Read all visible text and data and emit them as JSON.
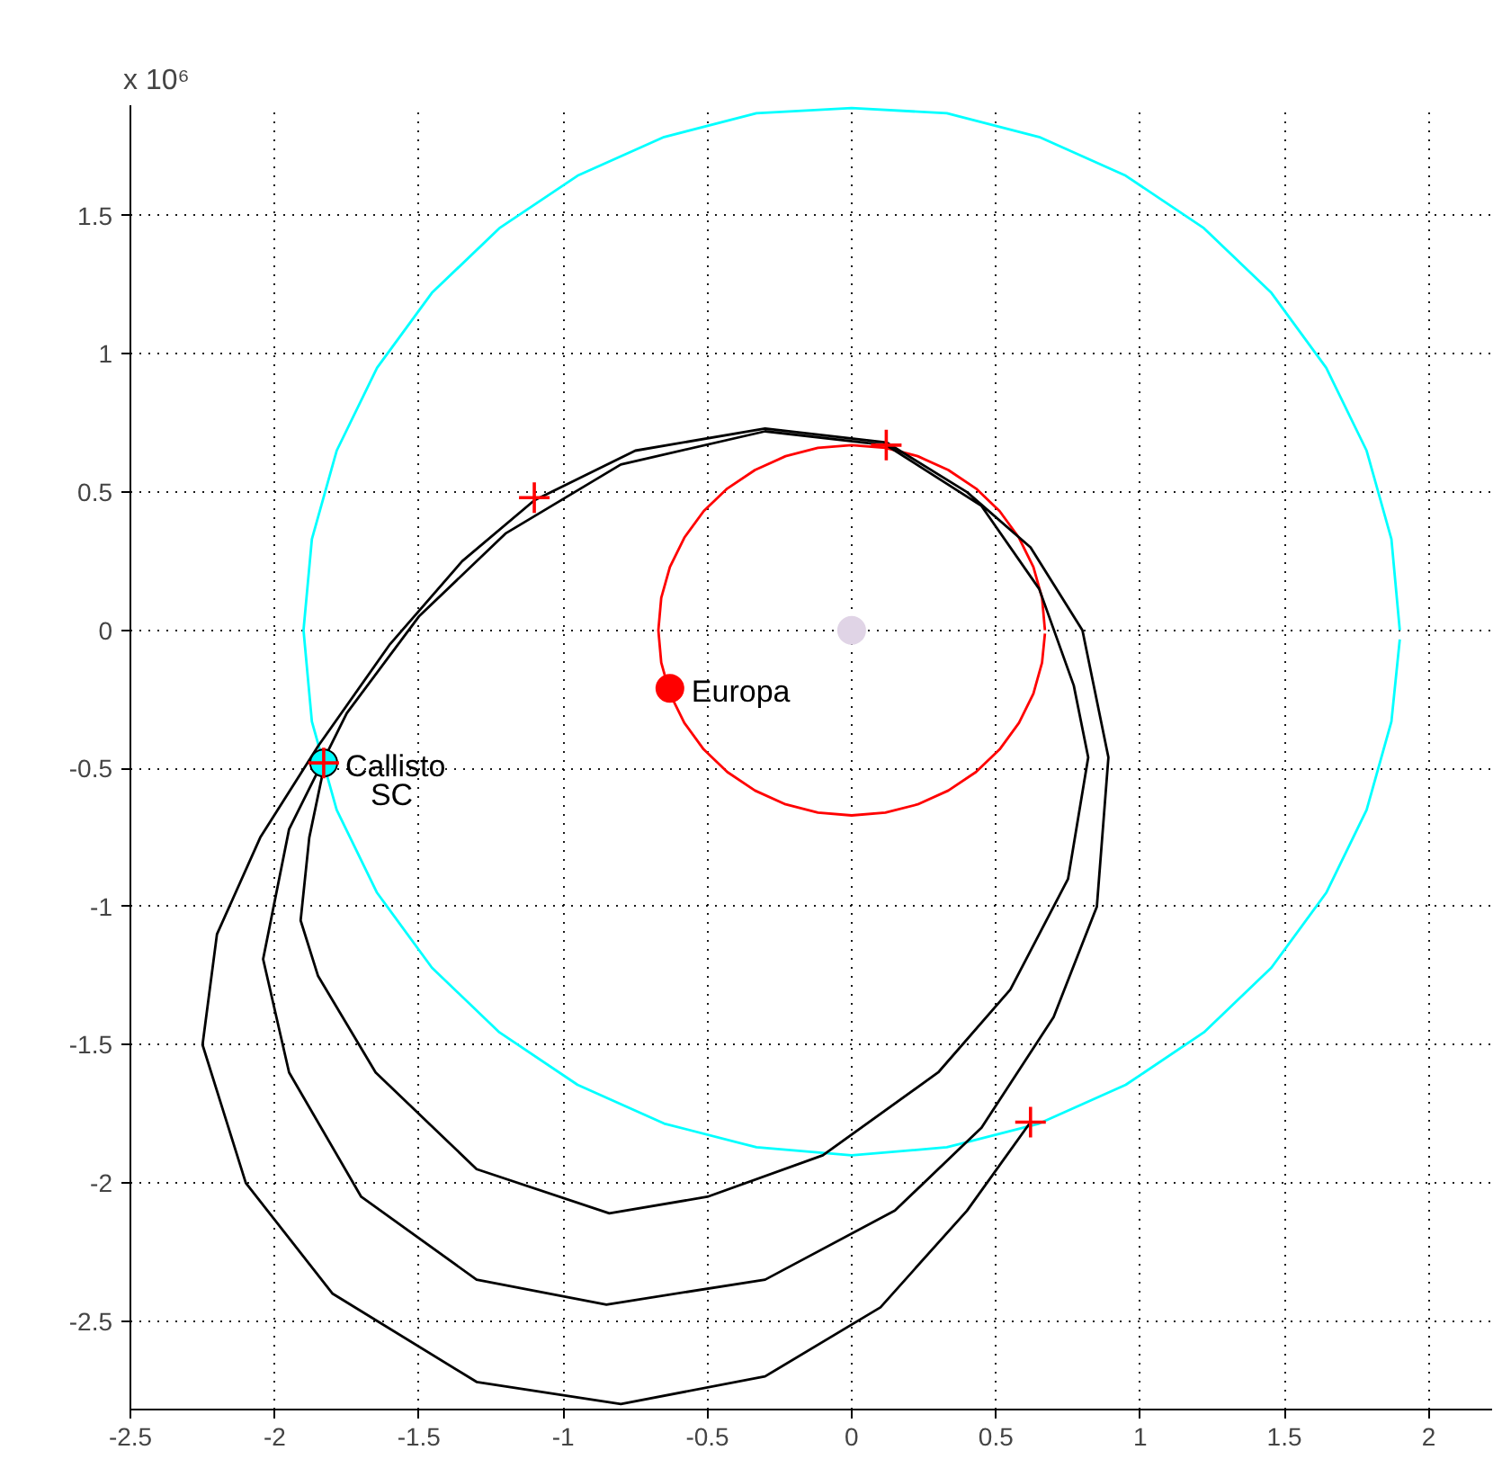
{
  "chart_data": {
    "type": "line",
    "annotations": [
      "x 10⁶"
    ],
    "xlim": [
      -2.5,
      2.22
    ],
    "ylim": [
      -2.82,
      1.9
    ],
    "xticks": [
      -2.5,
      -2,
      -1.5,
      -1,
      -0.5,
      0,
      0.5,
      1,
      1.5,
      2
    ],
    "yticks": [
      -2.5,
      -2,
      -1.5,
      -1,
      -0.5,
      0,
      0.5,
      1,
      1.5
    ],
    "grid": true,
    "line_style": "solid",
    "series": [
      {
        "color": "#00ffff",
        "x": [
          1.9,
          1.871,
          1.785,
          1.645,
          1.455,
          1.221,
          0.95,
          0.65,
          0.33,
          0,
          -0.33,
          -0.65,
          -0.95,
          -1.221,
          -1.455,
          -1.645,
          -1.785,
          -1.871,
          -1.9,
          -1.871,
          -1.785,
          -1.645,
          -1.455,
          -1.221,
          -0.95,
          -0.65,
          -0.33,
          0,
          0.33,
          0.65,
          0.95,
          1.221,
          1.455,
          1.645,
          1.785,
          1.871,
          1.9
        ],
        "values": [
          0,
          0.33,
          0.65,
          0.95,
          1.221,
          1.455,
          1.645,
          1.785,
          1.871,
          1.89,
          1.871,
          1.785,
          1.645,
          1.455,
          1.221,
          0.95,
          0.65,
          0.33,
          0,
          -0.33,
          -0.65,
          -0.95,
          -1.221,
          -1.455,
          -1.645,
          -1.785,
          -1.871,
          -1.9,
          -1.871,
          -1.785,
          -1.645,
          -1.455,
          -1.221,
          -0.95,
          -0.65,
          -0.33,
          -0.033
        ]
      },
      {
        "color": "#ff0000",
        "x": [
          0.67,
          0.66,
          0.63,
          0.58,
          0.513,
          0.431,
          0.335,
          0.229,
          0.117,
          0,
          -0.117,
          -0.229,
          -0.335,
          -0.431,
          -0.513,
          -0.58,
          -0.63,
          -0.66,
          -0.67,
          -0.66,
          -0.63,
          -0.58,
          -0.513,
          -0.431,
          -0.335,
          -0.229,
          -0.117,
          0,
          0.117,
          0.229,
          0.335,
          0.431,
          0.513,
          0.58,
          0.63,
          0.66,
          0.67
        ],
        "values": [
          0,
          0.117,
          0.229,
          0.335,
          0.431,
          0.513,
          0.58,
          0.63,
          0.66,
          0.67,
          0.66,
          0.63,
          0.58,
          0.513,
          0.431,
          0.335,
          0.229,
          0.117,
          0,
          -0.117,
          -0.229,
          -0.335,
          -0.431,
          -0.513,
          -0.58,
          -0.63,
          -0.66,
          -0.67,
          -0.66,
          -0.63,
          -0.58,
          -0.513,
          -0.431,
          -0.335,
          -0.229,
          -0.117,
          -0.012
        ]
      },
      {
        "color": "#000000",
        "x": [
          0.62,
          0.4,
          0.1,
          -0.3,
          -0.8,
          -1.3,
          -1.8,
          -2.1,
          -2.25,
          -2.2,
          -2.05,
          -1.85,
          -1.6,
          -1.35,
          -1.1,
          -0.75,
          -0.3,
          0.12,
          0.4,
          0.62,
          0.8,
          0.89,
          0.85,
          0.7,
          0.45,
          0.15,
          -0.3,
          -0.85,
          -1.3,
          -1.7,
          -1.95,
          -2.04,
          -1.95,
          -1.75,
          -1.5,
          -1.2,
          -0.8,
          -0.3,
          0.12,
          0.45,
          0.65,
          0.77,
          0.82,
          0.75,
          0.55,
          0.3,
          -0.1,
          -0.5,
          -0.84,
          -1.3,
          -1.65,
          -1.85,
          -1.91,
          -1.88,
          -1.83
        ],
        "values": [
          -1.78,
          -2.1,
          -2.45,
          -2.7,
          -2.8,
          -2.72,
          -2.4,
          -2.0,
          -1.5,
          -1.1,
          -0.75,
          -0.42,
          -0.05,
          0.25,
          0.47,
          0.65,
          0.73,
          0.68,
          0.5,
          0.3,
          0.0,
          -0.46,
          -1.0,
          -1.4,
          -1.8,
          -2.1,
          -2.35,
          -2.44,
          -2.35,
          -2.05,
          -1.6,
          -1.19,
          -0.72,
          -0.3,
          0.05,
          0.35,
          0.6,
          0.72,
          0.67,
          0.45,
          0.15,
          -0.2,
          -0.46,
          -0.9,
          -1.3,
          -1.6,
          -1.9,
          -2.05,
          -2.11,
          -1.95,
          -1.6,
          -1.25,
          -1.05,
          -0.75,
          -0.5
        ]
      },
      {
        "type": "scatter",
        "marker": "circle",
        "color": "#e0d4e6",
        "x": [
          0
        ],
        "values": [
          0
        ]
      },
      {
        "type": "scatter",
        "marker": "circle",
        "color": "#ff0000",
        "name": "Europa",
        "x": [
          -0.63
        ],
        "values": [
          -0.21
        ]
      },
      {
        "type": "scatter",
        "marker": "circle",
        "color": "#00ffff",
        "name": "Callisto",
        "x": [
          -1.83
        ],
        "values": [
          -0.48
        ]
      },
      {
        "type": "scatter",
        "marker": "cross",
        "color": "#ff0000",
        "name": "SC",
        "x": [
          -1.83
        ],
        "values": [
          -0.48
        ]
      },
      {
        "type": "scatter",
        "marker": "cross",
        "color": "#ff0000",
        "x": [
          -1.1,
          0.12,
          0.62
        ],
        "values": [
          0.48,
          0.67,
          -1.78
        ]
      }
    ]
  }
}
